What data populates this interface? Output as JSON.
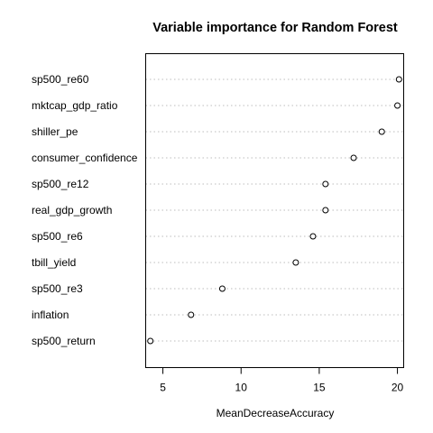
{
  "chart_data": {
    "type": "scatter",
    "title": "Variable importance for Random Forest",
    "xlabel": "MeanDecreaseAccuracy",
    "ylabel": "",
    "xlim": [
      3.9,
      20.4
    ],
    "xticks": [
      5,
      10,
      15,
      20
    ],
    "grid": "dotted horizontal guide lines",
    "categories": [
      "sp500_re60",
      "mktcap_gdp_ratio",
      "shiller_pe",
      "consumer_confidence",
      "sp500_re12",
      "real_gdp_growth",
      "sp500_re6",
      "tbill_yield",
      "sp500_re3",
      "inflation",
      "sp500_return"
    ],
    "values": [
      20.1,
      20.0,
      19.0,
      17.2,
      15.4,
      15.4,
      14.6,
      13.5,
      8.8,
      6.8,
      4.2
    ]
  }
}
